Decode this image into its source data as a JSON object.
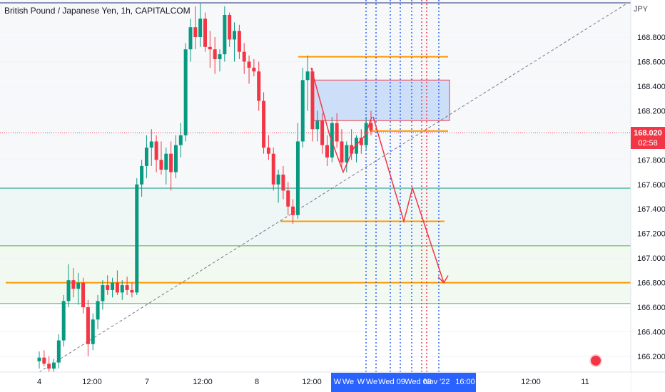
{
  "header": {
    "title": "British Pound / Japanese Yen, 1h, CAPITALCOM",
    "currency": "JPY"
  },
  "last_price": {
    "value": "168.020",
    "countdown": "02:58"
  },
  "colors": {
    "up": "#089981",
    "down": "#f23645",
    "orange": "#ff9800",
    "blue_dotted": "#2962ff",
    "red_dotted": "#f23645",
    "box_fill": "#bbd4f6",
    "forecast": "#f23645",
    "trend": "#787b86"
  },
  "chart_data": {
    "type": "candlestick",
    "ylim": [
      166.1,
      169.08
    ],
    "y_ticks": [
      "168.800",
      "168.600",
      "168.400",
      "168.200",
      "168.000",
      "167.800",
      "167.600",
      "167.400",
      "167.200",
      "167.000",
      "166.800",
      "166.600",
      "166.400",
      "166.200"
    ],
    "x_ticks": [
      "4",
      "12:00",
      "7",
      "12:00",
      "8",
      "12:00",
      "",
      "12:00",
      "11"
    ],
    "x_highlight_labels": [
      "W",
      "We",
      "W",
      "We",
      "Wed 09",
      "Wed 09",
      "Nov '22",
      "16:00"
    ],
    "horizontal_levels": [
      {
        "price": 168.64,
        "color": "orange",
        "from": 418,
        "to": 628
      },
      {
        "price": 168.035,
        "color": "orange",
        "from": 518,
        "to": 628
      },
      {
        "price": 167.3,
        "color": "orange",
        "from": 393,
        "to": 623
      },
      {
        "price": 166.8,
        "color": "orange",
        "from": 8,
        "to": 884
      },
      {
        "price": 167.57,
        "color": "teal",
        "from": 0,
        "to": 884
      },
      {
        "price": 167.1,
        "color": "green",
        "from": 0,
        "to": 884
      },
      {
        "price": 166.63,
        "color": "green",
        "from": 0,
        "to": 884
      }
    ],
    "shaded_zone": {
      "top": 168.45,
      "bottom": 168.12
    },
    "forecast_path": [
      [
        168.15
      ],
      [
        167.3
      ],
      [
        167.55
      ],
      [
        166.8
      ]
    ],
    "candles": [
      [
        166.16,
        166.24,
        166.1,
        166.19
      ],
      [
        166.19,
        166.25,
        166.12,
        166.14
      ],
      [
        166.14,
        166.2,
        166.05,
        166.1
      ],
      [
        166.1,
        166.18,
        166.03,
        166.15
      ],
      [
        166.15,
        166.38,
        166.1,
        166.33
      ],
      [
        166.33,
        166.7,
        166.28,
        166.65
      ],
      [
        166.65,
        166.95,
        166.6,
        166.82
      ],
      [
        166.82,
        166.92,
        166.68,
        166.75
      ],
      [
        166.75,
        166.88,
        166.62,
        166.8
      ],
      [
        166.8,
        166.84,
        166.55,
        166.6
      ],
      [
        166.6,
        166.66,
        166.2,
        166.3
      ],
      [
        166.3,
        166.55,
        166.25,
        166.5
      ],
      [
        166.5,
        166.7,
        166.42,
        166.65
      ],
      [
        166.65,
        166.82,
        166.58,
        166.78
      ],
      [
        166.78,
        166.86,
        166.7,
        166.74
      ],
      [
        166.74,
        166.84,
        166.68,
        166.8
      ],
      [
        166.8,
        166.9,
        166.7,
        166.72
      ],
      [
        166.72,
        166.82,
        166.66,
        166.78
      ],
      [
        166.78,
        166.85,
        166.7,
        166.74
      ],
      [
        166.74,
        166.8,
        166.68,
        166.72
      ],
      [
        166.72,
        167.65,
        166.7,
        167.6
      ],
      [
        167.6,
        167.8,
        167.5,
        167.75
      ],
      [
        167.75,
        168.0,
        167.65,
        167.9
      ],
      [
        167.9,
        168.05,
        167.75,
        167.95
      ],
      [
        167.95,
        168.0,
        167.7,
        167.8
      ],
      [
        167.8,
        167.95,
        167.68,
        167.72
      ],
      [
        167.72,
        167.9,
        167.6,
        167.85
      ],
      [
        167.85,
        167.95,
        167.55,
        167.7
      ],
      [
        167.7,
        168.0,
        167.65,
        167.92
      ],
      [
        167.92,
        168.1,
        167.82,
        168.0
      ],
      [
        168.0,
        168.75,
        167.95,
        168.7
      ],
      [
        168.7,
        168.95,
        168.6,
        168.88
      ],
      [
        168.88,
        169.05,
        168.7,
        168.8
      ],
      [
        168.8,
        169.08,
        168.72,
        168.95
      ],
      [
        168.95,
        169.0,
        168.68,
        168.72
      ],
      [
        168.72,
        168.85,
        168.55,
        168.7
      ],
      [
        168.7,
        168.8,
        168.5,
        168.62
      ],
      [
        168.62,
        168.7,
        168.52,
        168.66
      ],
      [
        168.66,
        169.05,
        168.6,
        168.98
      ],
      [
        168.98,
        169.0,
        168.72,
        168.78
      ],
      [
        168.78,
        168.92,
        168.6,
        168.85
      ],
      [
        168.85,
        168.9,
        168.62,
        168.68
      ],
      [
        168.68,
        168.75,
        168.5,
        168.6
      ],
      [
        168.6,
        168.65,
        168.42,
        168.55
      ],
      [
        168.55,
        168.62,
        168.48,
        168.52
      ],
      [
        168.52,
        168.6,
        168.2,
        168.28
      ],
      [
        168.28,
        168.35,
        167.85,
        167.9
      ],
      [
        167.9,
        168.0,
        167.8,
        167.85
      ],
      [
        167.85,
        167.9,
        167.55,
        167.6
      ],
      [
        167.6,
        167.72,
        167.45,
        167.68
      ],
      [
        167.68,
        167.75,
        167.48,
        167.55
      ],
      [
        167.55,
        167.62,
        167.35,
        167.42
      ],
      [
        167.42,
        167.48,
        167.28,
        167.35
      ],
      [
        167.35,
        168.1,
        167.32,
        167.95
      ],
      [
        167.95,
        168.55,
        167.9,
        168.45
      ],
      [
        168.45,
        168.65,
        168.2,
        168.52
      ],
      [
        168.52,
        168.55,
        167.95,
        168.05
      ],
      [
        168.05,
        168.2,
        167.95,
        168.12
      ],
      [
        168.12,
        168.18,
        167.85,
        167.92
      ],
      [
        167.92,
        168.0,
        167.75,
        167.82
      ],
      [
        167.82,
        168.15,
        167.78,
        168.1
      ],
      [
        168.1,
        168.18,
        167.9,
        167.95
      ],
      [
        167.95,
        168.05,
        167.72,
        167.78
      ],
      [
        167.78,
        167.95,
        167.7,
        167.92
      ],
      [
        167.92,
        168.05,
        167.8,
        167.85
      ],
      [
        167.85,
        168.0,
        167.78,
        167.98
      ],
      [
        167.98,
        168.05,
        167.85,
        167.92
      ],
      [
        167.92,
        168.15,
        167.88,
        168.1
      ],
      [
        168.1,
        168.2,
        168.0,
        168.04
      ]
    ]
  }
}
